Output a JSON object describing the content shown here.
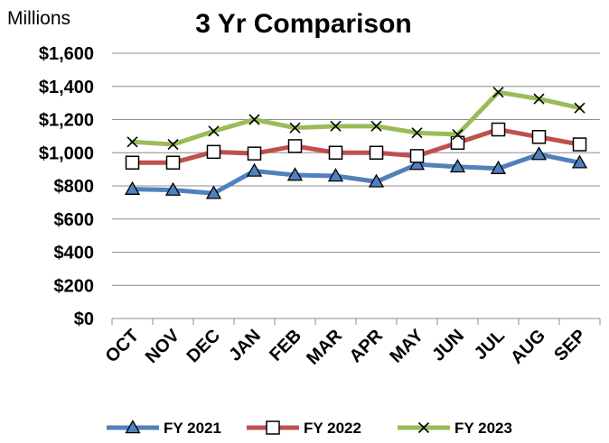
{
  "chart_data": {
    "type": "line",
    "title": "3 Yr Comparison",
    "ylabel": "Millions",
    "categories": [
      "OCT",
      "NOV",
      "DEC",
      "JAN",
      "FEB",
      "MAR",
      "APR",
      "MAY",
      "JUN",
      "JUL",
      "AUG",
      "SEP"
    ],
    "ylim": [
      0,
      1600
    ],
    "ytick_values": [
      0,
      200,
      400,
      600,
      800,
      1000,
      1200,
      1400,
      1600
    ],
    "ytick_labels": [
      "$0",
      "$200",
      "$400",
      "$600",
      "$800",
      "$1,000",
      "$1,200",
      "$1,400",
      "$1,600"
    ],
    "grid": true,
    "legend_position": "bottom",
    "series": [
      {
        "name": "FY 2021",
        "color": "#4f81bd",
        "marker": "triangle",
        "values": [
          780,
          775,
          755,
          890,
          865,
          860,
          825,
          930,
          915,
          905,
          990,
          940
        ]
      },
      {
        "name": "FY 2022",
        "color": "#c0504d",
        "marker": "square",
        "values": [
          940,
          940,
          1005,
          995,
          1040,
          1000,
          1000,
          980,
          1060,
          1140,
          1095,
          1050
        ]
      },
      {
        "name": "FY 2023",
        "color": "#9bbb59",
        "marker": "x",
        "values": [
          1065,
          1050,
          1130,
          1200,
          1150,
          1160,
          1160,
          1120,
          1110,
          1365,
          1325,
          1270
        ]
      }
    ]
  }
}
